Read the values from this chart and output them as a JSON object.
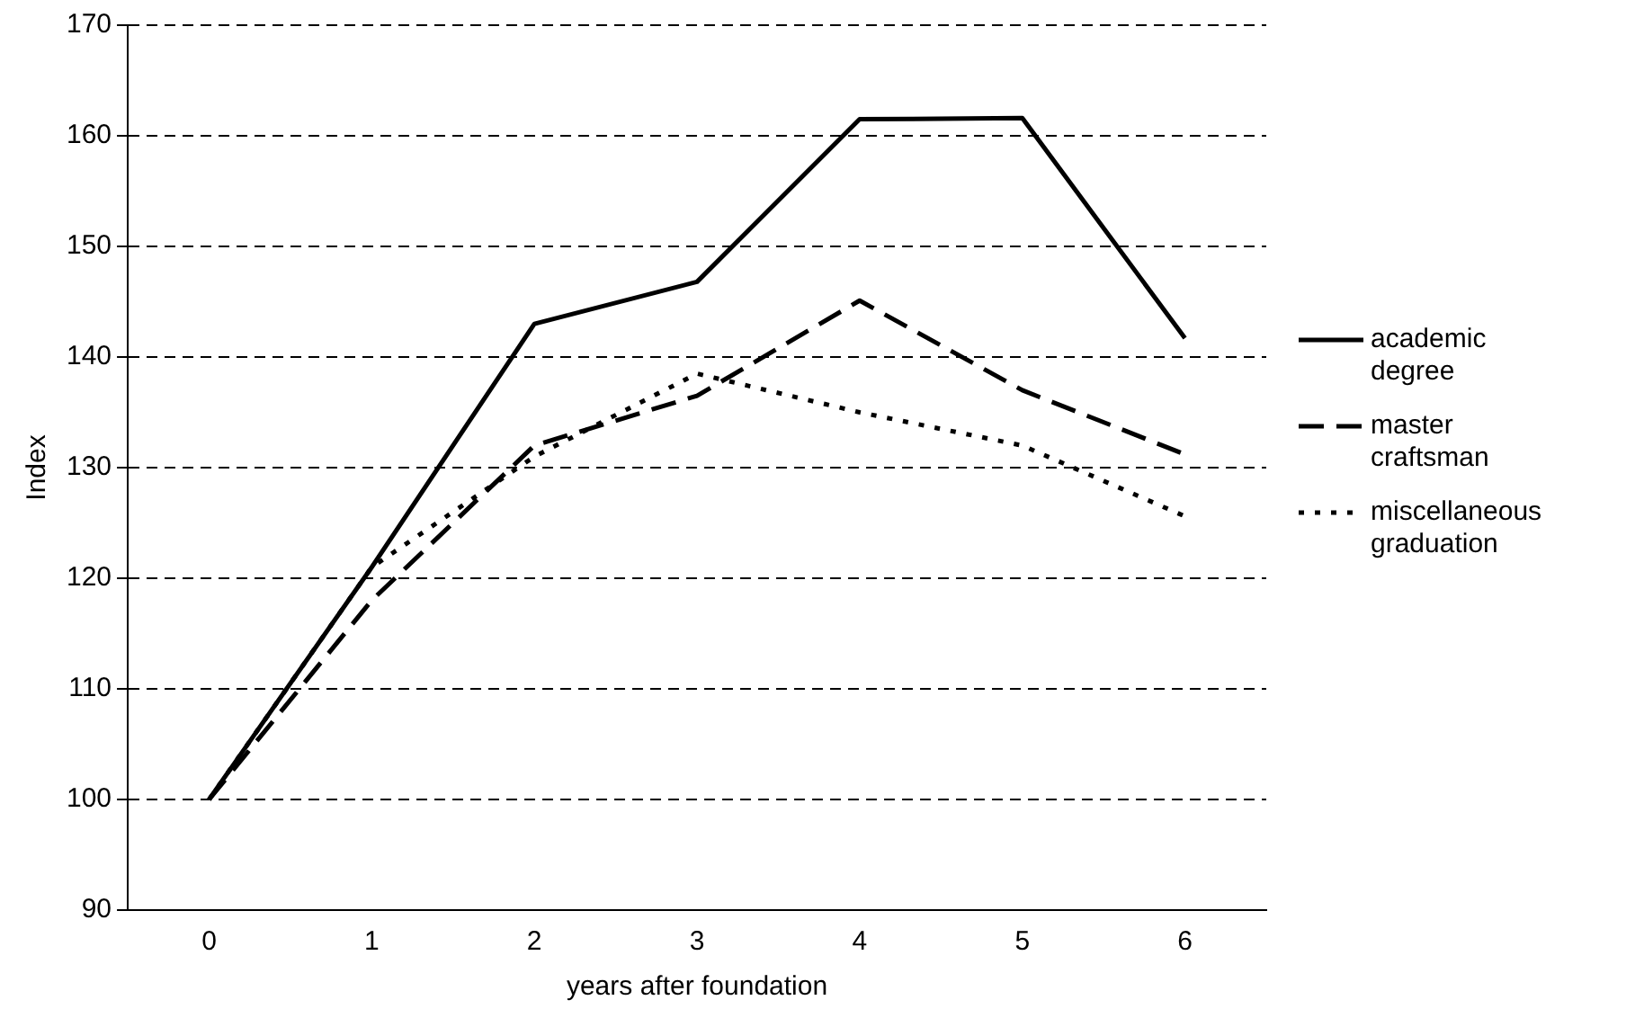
{
  "chart_data": {
    "type": "line",
    "xlabel": "years after foundation",
    "ylabel": "Index",
    "categories": [
      "0",
      "1",
      "2",
      "3",
      "4",
      "5",
      "6"
    ],
    "series": [
      {
        "name": "academic degree",
        "color": "#000000",
        "line_style": "solid",
        "values": [
          100,
          121,
          143,
          146.8,
          161.5,
          161.6,
          141.7
        ]
      },
      {
        "name": "master craftsman",
        "color": "#000000",
        "line_style": "dashed",
        "values": [
          100,
          118,
          132,
          136.5,
          145.1,
          137,
          131.2
        ]
      },
      {
        "name": "miscellaneous graduation",
        "color": "#000000",
        "line_style": "dotted",
        "values": [
          100,
          121,
          131,
          138.5,
          135,
          132,
          125.6
        ]
      }
    ],
    "ylim": [
      90,
      170
    ],
    "yticks": [
      90,
      100,
      110,
      120,
      130,
      140,
      150,
      160,
      170
    ],
    "grid": "y",
    "legend": "right",
    "marker": "none"
  }
}
